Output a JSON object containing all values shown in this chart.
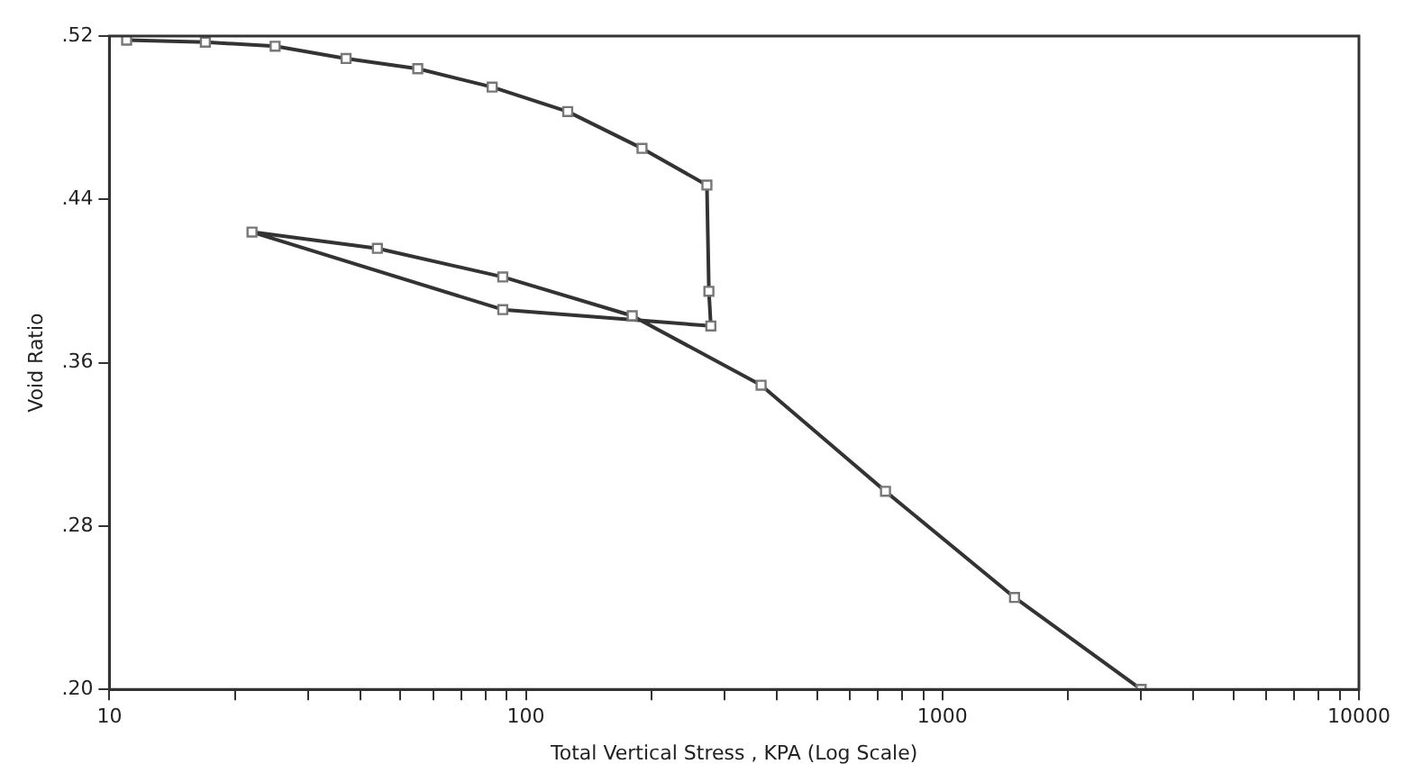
{
  "chart_data": {
    "type": "line",
    "xlabel": "Total Vertical Stress , KPA (Log Scale)",
    "ylabel": "Void Ratio",
    "log": "x",
    "xlim": [
      10,
      10000
    ],
    "xticks": [
      10,
      {
        "value": 20,
        "label": null
      },
      {
        "value": 30,
        "label": null
      },
      {
        "value": 40,
        "label": null
      },
      {
        "value": 50,
        "label": null
      },
      {
        "value": 60,
        "label": null
      },
      {
        "value": 70,
        "label": null
      },
      {
        "value": 80,
        "label": null
      },
      {
        "value": 90,
        "label": null
      },
      100,
      {
        "value": 200,
        "label": null
      },
      {
        "value": 300,
        "label": null
      },
      {
        "value": 400,
        "label": null
      },
      {
        "value": 500,
        "label": null
      },
      {
        "value": 600,
        "label": null
      },
      {
        "value": 700,
        "label": null
      },
      {
        "value": 800,
        "label": null
      },
      {
        "value": 900,
        "label": null
      },
      1000,
      {
        "value": 2000,
        "label": null
      },
      {
        "value": 3000,
        "label": null
      },
      {
        "value": 4000,
        "label": null
      },
      {
        "value": 5000,
        "label": null
      },
      {
        "value": 6000,
        "label": null
      },
      {
        "value": 7000,
        "label": null
      },
      {
        "value": 8000,
        "label": null
      },
      {
        "value": 9000,
        "label": null
      },
      10000
    ],
    "ylim": [
      0.2,
      0.52
    ],
    "yticks": [
      {
        "value": 0.2,
        "label": ".20"
      },
      {
        "value": 0.28,
        "label": ".28"
      },
      {
        "value": 0.36,
        "label": ".36"
      },
      {
        "value": 0.44,
        "label": ".44"
      },
      {
        "value": 0.52,
        "label": ".52"
      }
    ],
    "grid": false,
    "legend": false,
    "marker": "square",
    "line_style": "solid",
    "series": [
      {
        "color": "#333333",
        "x": [
          11,
          17,
          25,
          37,
          55,
          83,
          126,
          190,
          272,
          275,
          278,
          88,
          22,
          44,
          88,
          180,
          367,
          730,
          1490,
          3000
        ],
        "values": [
          0.518,
          0.517,
          0.515,
          0.509,
          0.504,
          0.495,
          0.483,
          0.465,
          0.447,
          0.395,
          0.378,
          0.386,
          0.424,
          0.416,
          0.402,
          0.383,
          0.349,
          0.297,
          0.245,
          0.2
        ]
      }
    ]
  }
}
